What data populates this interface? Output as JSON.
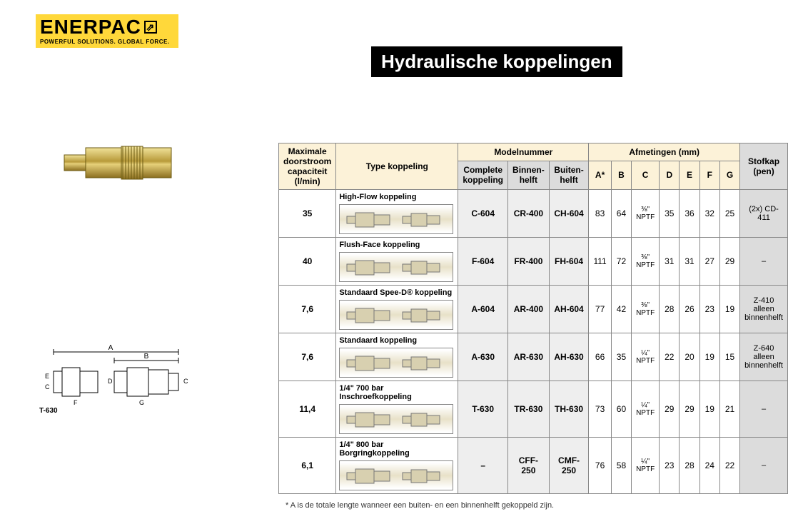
{
  "logo": {
    "brand": "ENERPAC",
    "tagline": "POWERFUL SOLUTIONS. GLOBAL FORCE.",
    "brand_bg": "#ffd83a"
  },
  "title": "Hydraulische koppelingen",
  "diagram_label": "T-630",
  "table": {
    "headers": {
      "capacity": "Maximale doorstroom capaciteit (l/min)",
      "type": "Type koppeling",
      "model_group": "Modelnummer",
      "model_complete": "Complete koppeling",
      "model_inner": "Binnen-helft",
      "model_outer": "Buiten-helft",
      "dim_group": "Afmetingen (mm)",
      "A": "A*",
      "B": "B",
      "C": "C",
      "D": "D",
      "E": "E",
      "F": "F",
      "G": "G",
      "dustcap": "Stofkap (pen)"
    },
    "rows": [
      {
        "capacity": "35",
        "type": "High-Flow koppeling",
        "complete": "C-604",
        "inner": "CR-400",
        "outer": "CH-604",
        "A": "83",
        "B": "64",
        "C": "⅜\" NPTF",
        "D": "35",
        "E": "36",
        "F": "32",
        "G": "25",
        "dustcap": "(2x) CD-411"
      },
      {
        "capacity": "40",
        "type": "Flush-Face koppeling",
        "complete": "F-604",
        "inner": "FR-400",
        "outer": "FH-604",
        "A": "111",
        "B": "72",
        "C": "⅜\" NPTF",
        "D": "31",
        "E": "31",
        "F": "27",
        "G": "29",
        "dustcap": "–"
      },
      {
        "capacity": "7,6",
        "type": "Standaard Spee-D® koppeling",
        "complete": "A-604",
        "inner": "AR-400",
        "outer": "AH-604",
        "A": "77",
        "B": "42",
        "C": "⅜\" NPTF",
        "D": "28",
        "E": "26",
        "F": "23",
        "G": "19",
        "dustcap": "Z-410 alleen binnenhelft"
      },
      {
        "capacity": "7,6",
        "type": "Standaard koppeling",
        "complete": "A-630",
        "inner": "AR-630",
        "outer": "AH-630",
        "A": "66",
        "B": "35",
        "C": "¼\" NPTF",
        "D": "22",
        "E": "20",
        "F": "19",
        "G": "15",
        "dustcap": "Z-640 alleen binnenhelft"
      },
      {
        "capacity": "11,4",
        "type": "1/4\" 700 bar Inschroefkoppeling",
        "complete": "T-630",
        "inner": "TR-630",
        "outer": "TH-630",
        "A": "73",
        "B": "60",
        "C": "¼\" NPTF",
        "D": "29",
        "E": "29",
        "F": "19",
        "G": "21",
        "dustcap": "–"
      },
      {
        "capacity": "6,1",
        "type": "1/4\" 800 bar Borgringkoppeling",
        "complete": "–",
        "inner": "CFF-250",
        "outer": "CMF-250",
        "A": "76",
        "B": "58",
        "C": "¼\" NPTF",
        "D": "23",
        "E": "28",
        "F": "24",
        "G": "22",
        "dustcap": "–"
      }
    ]
  },
  "footnote": "*   A is de totale lengte wanneer een buiten- en een binnenhelft gekoppeld zijn."
}
